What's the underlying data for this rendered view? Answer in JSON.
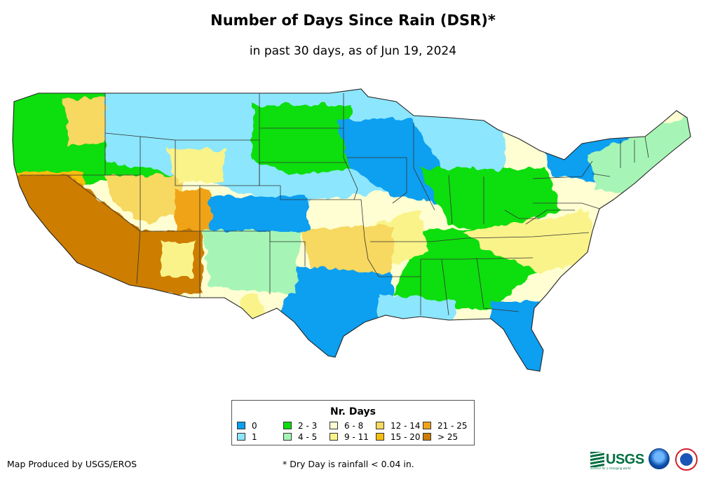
{
  "title": "Number of Days Since Rain (DSR)*",
  "subtitle": "in past 30 days, as of Jun 19, 2024",
  "legend": {
    "title": "Nr. Days",
    "items": [
      {
        "label": "0",
        "color": "#0c9ff0"
      },
      {
        "label": "1",
        "color": "#8ce6fd"
      },
      {
        "label": "2 - 3",
        "color": "#0bde0b"
      },
      {
        "label": "4 - 5",
        "color": "#a6f5b6"
      },
      {
        "label": "6 - 8",
        "color": "#fefed2"
      },
      {
        "label": "9 - 11",
        "color": "#f9f38a"
      },
      {
        "label": "12 - 14",
        "color": "#f7d860"
      },
      {
        "label": "15 - 20",
        "color": "#f8bd11"
      },
      {
        "label": "21 - 25",
        "color": "#f0a318"
      },
      {
        "label": "> 25",
        "color": "#cd7d04"
      }
    ]
  },
  "credit": "Map Produced by USGS/EROS",
  "footnote": "* Dry Day is rainfall < 0.04 in.",
  "logos": {
    "usgs": "USGS",
    "usgs_tagline": "science for a changing world"
  }
}
